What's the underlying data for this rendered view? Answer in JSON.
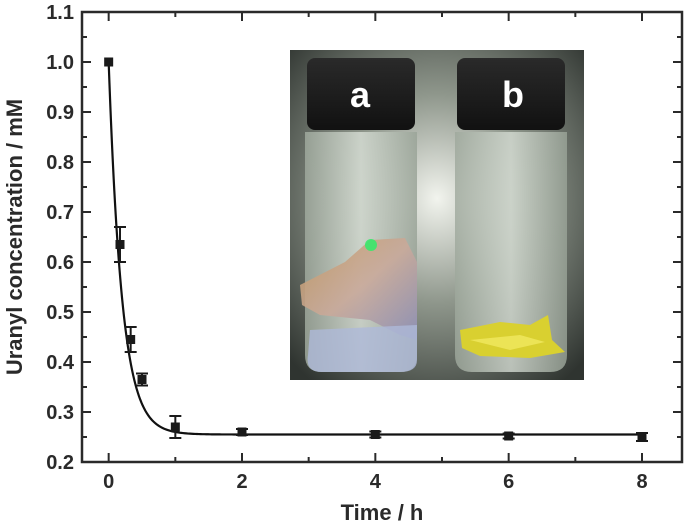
{
  "chart_data": {
    "type": "scatter",
    "title": "",
    "xlabel": "Time / h",
    "ylabel": "Uranyl concentration / mM",
    "xlim": [
      -0.4,
      8.6
    ],
    "ylim": [
      0.2,
      1.1
    ],
    "x_ticks": [
      "0",
      "2",
      "4",
      "6",
      "8"
    ],
    "y_ticks": [
      "0.2",
      "0.3",
      "0.4",
      "0.5",
      "0.6",
      "0.7",
      "0.8",
      "0.9",
      "1.0",
      "1.1"
    ],
    "grid": false,
    "legend": "none",
    "series": [
      {
        "x": [
          0,
          0.17,
          0.33,
          0.5,
          1,
          2,
          4,
          6,
          8
        ],
        "y": [
          1.0,
          0.635,
          0.445,
          0.365,
          0.27,
          0.26,
          0.255,
          0.252,
          0.25
        ],
        "error": [
          0,
          0.035,
          0.025,
          0.012,
          0.022,
          0.006,
          0.006,
          0.005,
          0.008
        ]
      }
    ],
    "fit_curve": {
      "y_initial": 1.0,
      "y_plateau": 0.255,
      "rate_per_h": 5.0
    },
    "inset": {
      "labels": [
        "a",
        "b"
      ]
    },
    "colors": {
      "axis": "#2a2a2a",
      "marker": "#1a1a1a"
    }
  }
}
